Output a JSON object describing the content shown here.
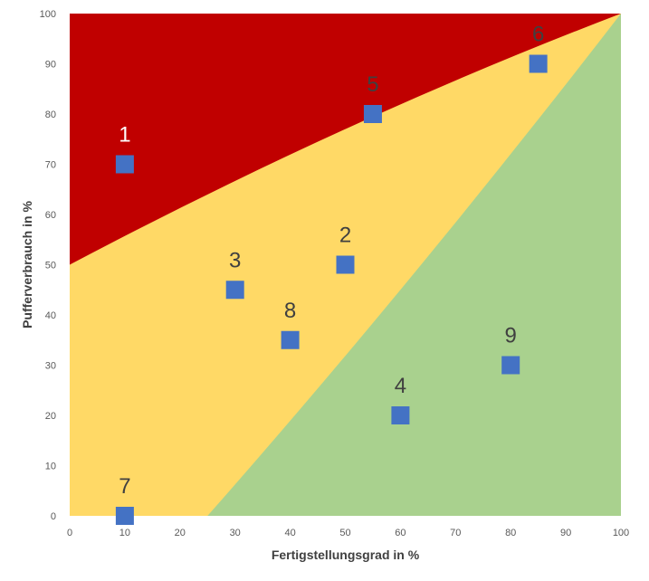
{
  "chart_data": {
    "type": "scatter",
    "title": "",
    "xlabel": "Fertigstellungsgrad in %",
    "ylabel": "Pufferverbrauch in %",
    "xlim": [
      0,
      100
    ],
    "ylim": [
      0,
      100
    ],
    "xticks": [
      "0",
      "10",
      "20",
      "30",
      "40",
      "50",
      "60",
      "70",
      "80",
      "90",
      "100"
    ],
    "yticks": [
      "0",
      "10",
      "20",
      "30",
      "40",
      "50",
      "60",
      "70",
      "80",
      "90",
      "100"
    ],
    "grid": false,
    "zones": [
      {
        "name": "red",
        "color": "#c00000",
        "boundary_x": [
          0,
          100
        ],
        "boundary_y": [
          50,
          100
        ]
      },
      {
        "name": "yellow",
        "color": "#ffd966"
      },
      {
        "name": "green",
        "color": "#a9d18e",
        "boundary_x": [
          25,
          100
        ],
        "boundary_y": [
          0,
          100
        ]
      }
    ],
    "points": [
      {
        "label": "1",
        "x": 10,
        "y": 70
      },
      {
        "label": "2",
        "x": 50,
        "y": 50
      },
      {
        "label": "3",
        "x": 30,
        "y": 45
      },
      {
        "label": "4",
        "x": 60,
        "y": 20
      },
      {
        "label": "5",
        "x": 55,
        "y": 80
      },
      {
        "label": "6",
        "x": 85,
        "y": 90
      },
      {
        "label": "7",
        "x": 10,
        "y": 0
      },
      {
        "label": "8",
        "x": 40,
        "y": 35
      },
      {
        "label": "9",
        "x": 80,
        "y": 30
      }
    ],
    "marker_color": "#4472c4",
    "label_color_on_red": "#ffffff",
    "label_color_default": "#404040"
  }
}
